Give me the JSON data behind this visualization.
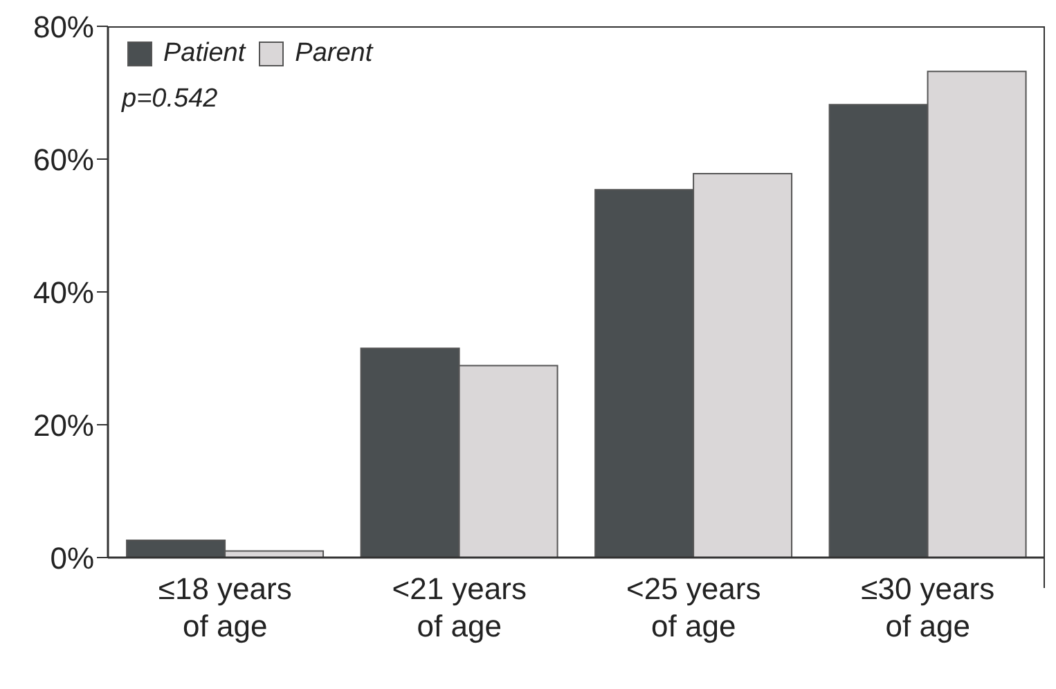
{
  "chart_data": {
    "type": "bar",
    "categories": [
      "≤18 years of age",
      "<21 years of age",
      "<25 years of age",
      "≤30 years of age"
    ],
    "series": [
      {
        "name": "Patient",
        "color": "#4a4f51",
        "values": [
          2.6,
          31.5,
          55.4,
          68.2
        ]
      },
      {
        "name": "Parent",
        "color": "#dad7d8",
        "values": [
          1.0,
          28.9,
          57.8,
          73.2
        ]
      }
    ],
    "ylim": [
      0,
      80
    ],
    "yticks": [
      {
        "value": 0,
        "label": "0%"
      },
      {
        "value": 20,
        "label": "20%"
      },
      {
        "value": 40,
        "label": "40%"
      },
      {
        "value": 60,
        "label": "60%"
      },
      {
        "value": 80,
        "label": "80%"
      }
    ],
    "legend": "top left",
    "grid": false,
    "annotations": [
      "p=0.542"
    ]
  }
}
